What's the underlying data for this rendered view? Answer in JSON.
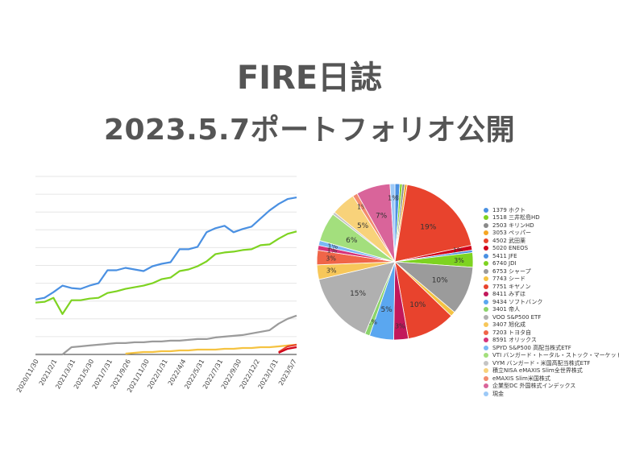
{
  "page": {
    "title_line1": "FIRE日誌",
    "title_line2": "2023.5.7ポートフォリオ公開"
  },
  "chart_data": [
    {
      "type": "line",
      "title": "",
      "xlabel": "",
      "ylabel": "",
      "grid": true,
      "ylim": [
        0,
        220
      ],
      "x_tick_labels": [
        "2020/11/30",
        "2021/2/1",
        "2021/3/31",
        "2021/5/30",
        "2021/7/31",
        "2021/9/26",
        "2021/11/30",
        "2022/1/31",
        "2022/4/4",
        "2022/5/31",
        "2022/7/31",
        "2022/9/30",
        "2022/12/2",
        "2023/1/31",
        "2023/5/7"
      ],
      "series": [
        {
          "color": "#4a90e2",
          "values": [
            68,
            70,
            77,
            85,
            82,
            81,
            85,
            88,
            104,
            104,
            107,
            105,
            103,
            109,
            112,
            114,
            130,
            130,
            133,
            151,
            156,
            159,
            151,
            155,
            158,
            168,
            178,
            186,
            192,
            194
          ]
        },
        {
          "color": "#7ed321",
          "values": [
            64,
            65,
            70,
            50,
            67,
            67,
            69,
            70,
            76,
            78,
            81,
            83,
            85,
            88,
            93,
            95,
            103,
            105,
            109,
            115,
            124,
            126,
            127,
            129,
            130,
            135,
            136,
            143,
            149,
            152
          ]
        },
        {
          "color": "#9b9b9b",
          "values": [
            0,
            0,
            0,
            0,
            9,
            10,
            11,
            12,
            13,
            14,
            14,
            15,
            15,
            16,
            16,
            17,
            17,
            18,
            19,
            19,
            21,
            22,
            23,
            24,
            26,
            28,
            30,
            38,
            44,
            48
          ]
        },
        {
          "color": "#f5c342",
          "values": [
            null,
            null,
            null,
            null,
            null,
            null,
            null,
            null,
            null,
            null,
            1,
            2,
            3,
            3,
            4,
            4,
            5,
            5,
            6,
            6,
            6,
            7,
            7,
            8,
            8,
            9,
            9,
            10,
            11,
            12
          ]
        },
        {
          "color": "#e8432d",
          "values": [
            null,
            null,
            null,
            null,
            null,
            null,
            null,
            null,
            null,
            null,
            null,
            null,
            null,
            null,
            null,
            null,
            null,
            null,
            null,
            null,
            null,
            null,
            null,
            null,
            null,
            null,
            null,
            3,
            10,
            12
          ]
        },
        {
          "color": "#d0021b",
          "values": [
            null,
            null,
            null,
            null,
            null,
            null,
            null,
            null,
            null,
            null,
            null,
            null,
            null,
            null,
            null,
            null,
            null,
            null,
            null,
            null,
            null,
            null,
            null,
            null,
            null,
            null,
            null,
            2,
            7,
            9
          ]
        }
      ]
    },
    {
      "type": "pie",
      "title": "",
      "slices": [
        {
          "name": "1379 ホクト",
          "value": 1,
          "label": "1%",
          "color": "#4a90e2"
        },
        {
          "name": "1518 三井松島HD",
          "value": 0.5,
          "label": "",
          "color": "#7ed321"
        },
        {
          "name": "2503 キリンHD",
          "value": 0.5,
          "label": "",
          "color": "#8a8a8a"
        },
        {
          "name": "3053 ペッパー",
          "value": 0.5,
          "label": "",
          "color": "#f5a623"
        },
        {
          "name": "4502 武田薬",
          "value": 19,
          "label": "19%",
          "color": "#e8432d"
        },
        {
          "name": "5020 ENEOS",
          "value": 1,
          "label": "1%",
          "color": "#d0021b"
        },
        {
          "name": "5411 JFE",
          "value": 0.5,
          "label": "",
          "color": "#4a90e2"
        },
        {
          "name": "6740 JDI",
          "value": 3,
          "label": "3%",
          "color": "#7ed321"
        },
        {
          "name": "6753 シャープ",
          "value": 10,
          "label": "10%",
          "color": "#9b9b9b"
        },
        {
          "name": "7743 シード",
          "value": 1,
          "label": "",
          "color": "#f5c342"
        },
        {
          "name": "7751 キヤノン",
          "value": 10,
          "label": "10%",
          "color": "#e8432d"
        },
        {
          "name": "8411 みずほ",
          "value": 3,
          "label": "3%",
          "color": "#c2185b"
        },
        {
          "name": "9434 ソフトバンク",
          "value": 5,
          "label": "5%",
          "color": "#5aa7f0"
        },
        {
          "name": "3401 帝人",
          "value": 1,
          "label": "1%",
          "color": "#8bd46a"
        },
        {
          "name": "VOO S&P500 ETF",
          "value": 15,
          "label": "15%",
          "color": "#b0b0b0"
        },
        {
          "name": "3407 旭化成",
          "value": 3,
          "label": "3%",
          "color": "#f7c75a"
        },
        {
          "name": "7203 トヨタ自",
          "value": 3,
          "label": "3%",
          "color": "#f06548"
        },
        {
          "name": "8591 オリックス",
          "value": 1,
          "label": "1%",
          "color": "#d6337a"
        },
        {
          "name": "SPYD S&P500 高配当株式ETF",
          "value": 1,
          "label": "1%",
          "color": "#7ab8f5"
        },
        {
          "name": "VTI バンガード・トータル・ストック・マーケットETF",
          "value": 6,
          "label": "6%",
          "color": "#a3df7d"
        },
        {
          "name": "VYM バンガード・米国高配当株式ETF",
          "value": 0.5,
          "label": "",
          "color": "#c4c4c4"
        },
        {
          "name": "積立NISA eMAXIS Slim全世界株式",
          "value": 5,
          "label": "5%",
          "color": "#f8d27a"
        },
        {
          "name": "eMAXIS Slim米国株式",
          "value": 1,
          "label": "1%",
          "color": "#f28b6e"
        },
        {
          "name": "企業型DC 外国株式インデックス",
          "value": 7,
          "label": "7%",
          "color": "#d9649a"
        },
        {
          "name": "現金",
          "value": 1,
          "label": "1%",
          "color": "#9cc9f7"
        }
      ]
    }
  ]
}
